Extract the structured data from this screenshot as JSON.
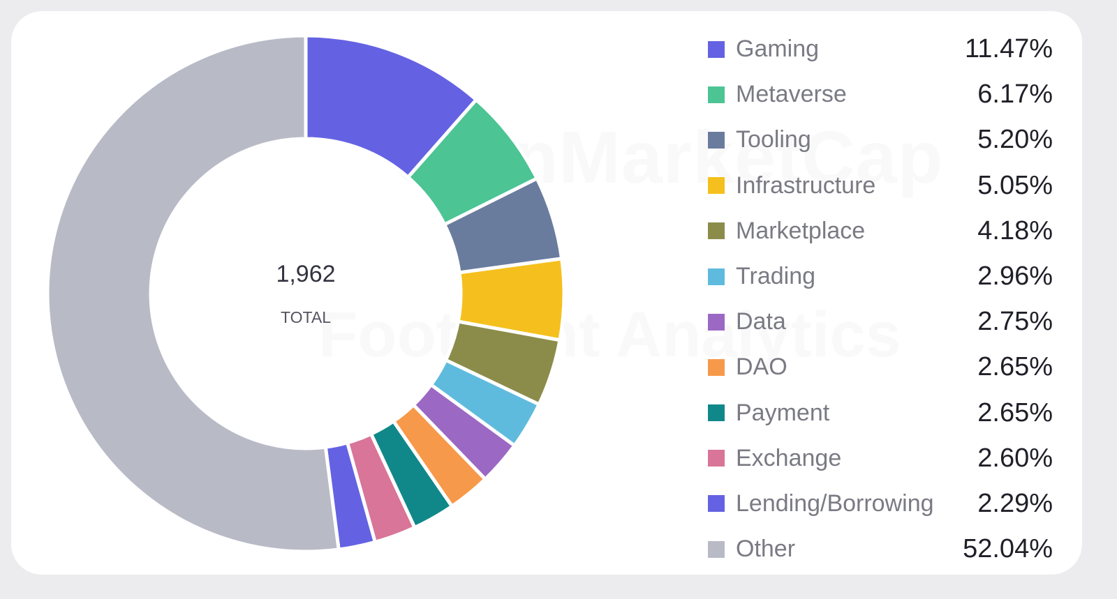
{
  "chart_data": {
    "type": "pie",
    "center_value": "1,962",
    "center_label": "TOTAL",
    "categories": [
      "Gaming",
      "Metaverse",
      "Tooling",
      "Infrastructure",
      "Marketplace",
      "Trading",
      "Data",
      "DAO",
      "Payment",
      "Exchange",
      "Lending/Borrowing",
      "Other"
    ],
    "values": [
      11.47,
      6.17,
      5.2,
      5.05,
      4.18,
      2.96,
      2.75,
      2.65,
      2.65,
      2.6,
      2.29,
      52.04
    ],
    "value_labels": [
      "11.47%",
      "6.17%",
      "5.20%",
      "5.05%",
      "4.18%",
      "2.96%",
      "2.75%",
      "2.65%",
      "2.65%",
      "2.60%",
      "2.29%",
      "52.04%"
    ],
    "colors": [
      "#6462e2",
      "#4cc494",
      "#6a7c9e",
      "#f5c01e",
      "#8b8c4a",
      "#5fbbdd",
      "#9b69c3",
      "#f7994a",
      "#10888a",
      "#d87598",
      "#6462e2",
      "#b8bac6"
    ],
    "legend_position": "right"
  },
  "watermarks": {
    "top": "CoinMarketCap",
    "bottom": "Footprint Analytics"
  }
}
